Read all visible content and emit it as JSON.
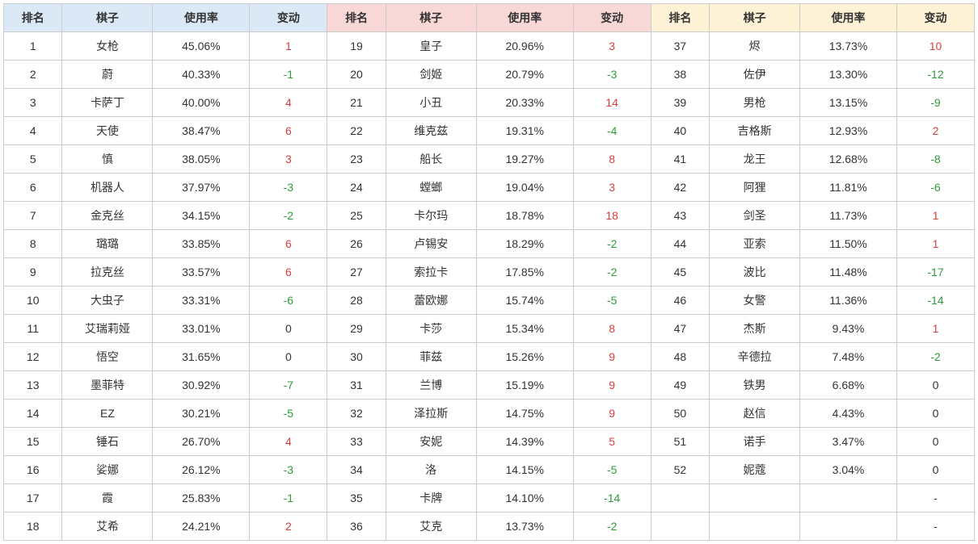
{
  "headers": {
    "rank": "排名",
    "name": "棋子",
    "rate": "使用率",
    "delta": "变动"
  },
  "header_bg": [
    "#dbe9f6",
    "#f8d7d7",
    "#fdf1d6"
  ],
  "colors": {
    "pos": "#d94040",
    "neg": "#2e9c3a",
    "zero": "#333333",
    "border": "#cccccc"
  },
  "blocks": [
    {
      "rows": [
        {
          "rank": 1,
          "name": "女枪",
          "rate": "45.06%",
          "delta": 1
        },
        {
          "rank": 2,
          "name": "蔚",
          "rate": "40.33%",
          "delta": -1
        },
        {
          "rank": 3,
          "name": "卡萨丁",
          "rate": "40.00%",
          "delta": 4
        },
        {
          "rank": 4,
          "name": "天使",
          "rate": "38.47%",
          "delta": 6
        },
        {
          "rank": 5,
          "name": "慎",
          "rate": "38.05%",
          "delta": 3
        },
        {
          "rank": 6,
          "name": "机器人",
          "rate": "37.97%",
          "delta": -3
        },
        {
          "rank": 7,
          "name": "金克丝",
          "rate": "34.15%",
          "delta": -2
        },
        {
          "rank": 8,
          "name": "璐璐",
          "rate": "33.85%",
          "delta": 6
        },
        {
          "rank": 9,
          "name": "拉克丝",
          "rate": "33.57%",
          "delta": 6
        },
        {
          "rank": 10,
          "name": "大虫子",
          "rate": "33.31%",
          "delta": -6
        },
        {
          "rank": 11,
          "name": "艾瑞莉娅",
          "rate": "33.01%",
          "delta": 0
        },
        {
          "rank": 12,
          "name": "悟空",
          "rate": "31.65%",
          "delta": 0
        },
        {
          "rank": 13,
          "name": "墨菲特",
          "rate": "30.92%",
          "delta": -7
        },
        {
          "rank": 14,
          "name": "EZ",
          "rate": "30.21%",
          "delta": -5
        },
        {
          "rank": 15,
          "name": "锤石",
          "rate": "26.70%",
          "delta": 4
        },
        {
          "rank": 16,
          "name": "娑娜",
          "rate": "26.12%",
          "delta": -3
        },
        {
          "rank": 17,
          "name": "霞",
          "rate": "25.83%",
          "delta": -1
        },
        {
          "rank": 18,
          "name": "艾希",
          "rate": "24.21%",
          "delta": 2
        }
      ]
    },
    {
      "rows": [
        {
          "rank": 19,
          "name": "皇子",
          "rate": "20.96%",
          "delta": 3
        },
        {
          "rank": 20,
          "name": "剑姬",
          "rate": "20.79%",
          "delta": -3
        },
        {
          "rank": 21,
          "name": "小丑",
          "rate": "20.33%",
          "delta": 14
        },
        {
          "rank": 22,
          "name": "维克兹",
          "rate": "19.31%",
          "delta": -4
        },
        {
          "rank": 23,
          "name": "船长",
          "rate": "19.27%",
          "delta": 8
        },
        {
          "rank": 24,
          "name": "螳螂",
          "rate": "19.04%",
          "delta": 3
        },
        {
          "rank": 25,
          "name": "卡尔玛",
          "rate": "18.78%",
          "delta": 18
        },
        {
          "rank": 26,
          "name": "卢锡安",
          "rate": "18.29%",
          "delta": -2
        },
        {
          "rank": 27,
          "name": "索拉卡",
          "rate": "17.85%",
          "delta": -2
        },
        {
          "rank": 28,
          "name": "蕾欧娜",
          "rate": "15.74%",
          "delta": -5
        },
        {
          "rank": 29,
          "name": "卡莎",
          "rate": "15.34%",
          "delta": 8
        },
        {
          "rank": 30,
          "name": "菲兹",
          "rate": "15.26%",
          "delta": 9
        },
        {
          "rank": 31,
          "name": "兰博",
          "rate": "15.19%",
          "delta": 9
        },
        {
          "rank": 32,
          "name": "泽拉斯",
          "rate": "14.75%",
          "delta": 9
        },
        {
          "rank": 33,
          "name": "安妮",
          "rate": "14.39%",
          "delta": 5
        },
        {
          "rank": 34,
          "name": "洛",
          "rate": "14.15%",
          "delta": -5
        },
        {
          "rank": 35,
          "name": "卡牌",
          "rate": "14.10%",
          "delta": -14
        },
        {
          "rank": 36,
          "name": "艾克",
          "rate": "13.73%",
          "delta": -2
        }
      ]
    },
    {
      "rows": [
        {
          "rank": 37,
          "name": "烬",
          "rate": "13.73%",
          "delta": 10
        },
        {
          "rank": 38,
          "name": "佐伊",
          "rate": "13.30%",
          "delta": -12
        },
        {
          "rank": 39,
          "name": "男枪",
          "rate": "13.15%",
          "delta": -9
        },
        {
          "rank": 40,
          "name": "吉格斯",
          "rate": "12.93%",
          "delta": 2
        },
        {
          "rank": 41,
          "name": "龙王",
          "rate": "12.68%",
          "delta": -8
        },
        {
          "rank": 42,
          "name": "阿狸",
          "rate": "11.81%",
          "delta": -6
        },
        {
          "rank": 43,
          "name": "剑圣",
          "rate": "11.73%",
          "delta": 1
        },
        {
          "rank": 44,
          "name": "亚索",
          "rate": "11.50%",
          "delta": 1
        },
        {
          "rank": 45,
          "name": "波比",
          "rate": "11.48%",
          "delta": -17
        },
        {
          "rank": 46,
          "name": "女警",
          "rate": "11.36%",
          "delta": -14
        },
        {
          "rank": 47,
          "name": "杰斯",
          "rate": "9.43%",
          "delta": 1
        },
        {
          "rank": 48,
          "name": "辛德拉",
          "rate": "7.48%",
          "delta": -2
        },
        {
          "rank": 49,
          "name": "铁男",
          "rate": "6.68%",
          "delta": 0
        },
        {
          "rank": 50,
          "name": "赵信",
          "rate": "4.43%",
          "delta": 0
        },
        {
          "rank": 51,
          "name": "诺手",
          "rate": "3.47%",
          "delta": 0
        },
        {
          "rank": 52,
          "name": "妮蔻",
          "rate": "3.04%",
          "delta": 0
        },
        {
          "rank": "",
          "name": "",
          "rate": "",
          "delta": "-"
        },
        {
          "rank": "",
          "name": "",
          "rate": "",
          "delta": "-"
        }
      ]
    }
  ]
}
